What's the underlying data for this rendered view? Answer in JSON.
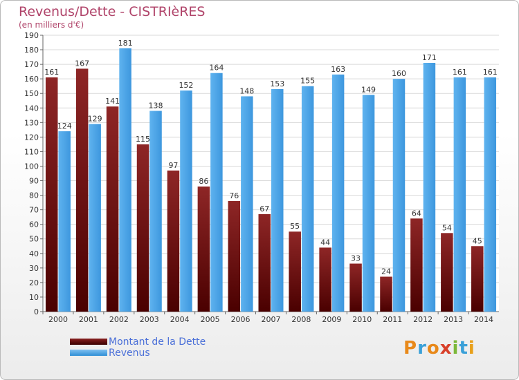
{
  "header": {
    "title": "Revenus/Dette - CISTRIèRES",
    "subtitle": "(en milliers d'€)"
  },
  "chart_data": {
    "type": "bar",
    "categories": [
      "2000",
      "2001",
      "2002",
      "2003",
      "2004",
      "2005",
      "2006",
      "2007",
      "2008",
      "2009",
      "2010",
      "2011",
      "2012",
      "2013",
      "2014"
    ],
    "series": [
      {
        "name": "Montant de la Dette",
        "color": "#7a1c1c",
        "values": [
          161,
          167,
          141,
          115,
          97,
          86,
          76,
          67,
          55,
          44,
          33,
          24,
          64,
          54,
          45
        ]
      },
      {
        "name": "Revenus",
        "color": "#4aa3e8",
        "values": [
          124,
          129,
          181,
          138,
          152,
          164,
          148,
          153,
          155,
          163,
          149,
          160,
          171,
          161,
          161
        ]
      }
    ],
    "ylim": [
      0,
      190
    ],
    "yticks": [
      0,
      10,
      20,
      30,
      40,
      50,
      60,
      70,
      80,
      90,
      100,
      110,
      120,
      130,
      140,
      150,
      160,
      170,
      180,
      190
    ],
    "grid": true,
    "legend_position": "bottom-left"
  },
  "legend": {
    "debt_label": "Montant de la Dette",
    "revenue_label": "Revenus"
  },
  "logo": {
    "text": "Proxiti"
  }
}
